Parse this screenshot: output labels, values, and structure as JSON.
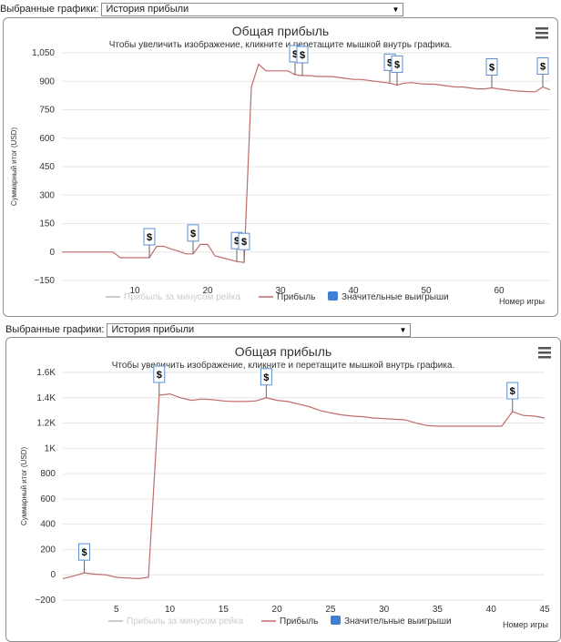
{
  "selectors": [
    {
      "label": "Выбранные графики:",
      "value": "История прибыли"
    },
    {
      "label": "Выбранные графики:",
      "value": "История прибыли"
    }
  ],
  "menu_icon": "hamburger-menu-icon",
  "colors": {
    "profit_line": "#c06b6b",
    "grid": "#e6e6e6",
    "flag_border": "#5b8fd0",
    "rake_legend": "#cccccc",
    "wins_legend": "#3f7fd4"
  },
  "chart_data": [
    {
      "type": "line",
      "title": "Общая прибыль",
      "subtitle": "Чтобы увеличить изображение, кликните и перетащите мышкой внутрь графика.",
      "ylabel": "Суммарный итог (USD)",
      "xlabel": "Номер игры",
      "ylim": [
        -150,
        1050
      ],
      "xlim": [
        0,
        67
      ],
      "yticks": [
        -150,
        0,
        150,
        300,
        450,
        600,
        750,
        900,
        1050
      ],
      "ytick_labels": [
        "−150",
        "0",
        "150",
        "300",
        "450",
        "600",
        "750",
        "900",
        "1,050"
      ],
      "xticks": [
        10,
        20,
        30,
        40,
        50,
        60
      ],
      "xtick_labels": [
        "10",
        "20",
        "30",
        "40",
        "50",
        "60"
      ],
      "grid": true,
      "legend": {
        "placement": "bottom",
        "items": [
          "Прибыль за минусом рейка",
          "Прибыль",
          "Значительные выигрыши"
        ]
      },
      "series": [
        {
          "name": "Прибыль",
          "x": [
            0,
            6,
            7,
            8,
            9,
            10,
            11,
            12,
            13,
            14,
            15,
            16,
            17,
            18,
            19,
            20,
            21,
            22,
            23,
            24,
            25,
            26,
            27,
            28,
            29,
            30,
            31,
            32,
            33,
            34,
            35,
            36,
            37,
            38,
            39,
            40,
            41,
            42,
            43,
            44,
            45,
            46,
            47,
            48,
            49,
            50,
            51,
            52,
            53,
            54,
            55,
            56,
            57,
            58,
            59,
            60,
            61,
            62,
            63,
            64,
            65,
            66,
            67
          ],
          "y": [
            0,
            0,
            0,
            -30,
            -30,
            -30,
            -30,
            -30,
            30,
            30,
            15,
            5,
            -10,
            -10,
            40,
            40,
            -20,
            -30,
            -40,
            -50,
            -55,
            870,
            990,
            955,
            955,
            955,
            955,
            935,
            930,
            930,
            925,
            925,
            925,
            920,
            915,
            910,
            910,
            905,
            900,
            895,
            890,
            880,
            890,
            893,
            888,
            885,
            885,
            880,
            875,
            870,
            870,
            865,
            860,
            860,
            865,
            860,
            855,
            850,
            848,
            845,
            845,
            870,
            855
          ]
        }
      ],
      "flags_x": [
        12,
        18,
        24,
        25,
        32,
        33,
        45,
        46,
        59,
        66
      ],
      "flag_label": "$"
    },
    {
      "type": "line",
      "title": "Общая прибыль",
      "subtitle": "Чтобы увеличить изображение, кликните и перетащите мышкой внутрь графика.",
      "ylabel": "Суммарный итог (USD)",
      "xlabel": "Номер игры",
      "ylim": [
        -200,
        1600
      ],
      "xlim": [
        0,
        45
      ],
      "yticks": [
        -200,
        0,
        200,
        400,
        600,
        800,
        1000,
        1200,
        1400,
        1600
      ],
      "ytick_labels": [
        "−200",
        "0",
        "200",
        "400",
        "600",
        "800",
        "1K",
        "1.2K",
        "1.4K",
        "1.6K"
      ],
      "xticks": [
        5,
        10,
        15,
        20,
        25,
        30,
        35,
        40,
        45
      ],
      "xtick_labels": [
        "5",
        "10",
        "15",
        "20",
        "25",
        "30",
        "35",
        "40",
        "45"
      ],
      "grid": true,
      "legend": {
        "placement": "bottom",
        "items": [
          "Прибыль за минусом рейка",
          "Прибыль",
          "Значительные выигрыши"
        ]
      },
      "series": [
        {
          "name": "Прибыль",
          "x": [
            0,
            1,
            2,
            3,
            4,
            5,
            6,
            7,
            8,
            9,
            10,
            11,
            12,
            13,
            14,
            15,
            16,
            17,
            18,
            19,
            20,
            21,
            22,
            23,
            24,
            25,
            26,
            27,
            28,
            29,
            30,
            31,
            32,
            33,
            34,
            35,
            36,
            37,
            38,
            39,
            40,
            41,
            42,
            43,
            44,
            45
          ],
          "y": [
            -30,
            -10,
            15,
            5,
            0,
            -20,
            -25,
            -30,
            -20,
            1420,
            1430,
            1400,
            1380,
            1390,
            1385,
            1375,
            1370,
            1370,
            1375,
            1400,
            1380,
            1370,
            1350,
            1330,
            1300,
            1280,
            1265,
            1255,
            1250,
            1240,
            1235,
            1230,
            1225,
            1200,
            1180,
            1175,
            1175,
            1175,
            1175,
            1175,
            1175,
            1175,
            1290,
            1260,
            1255,
            1240
          ]
        }
      ],
      "flags_x": [
        2,
        9,
        19,
        42
      ],
      "flag_label": "$"
    }
  ]
}
